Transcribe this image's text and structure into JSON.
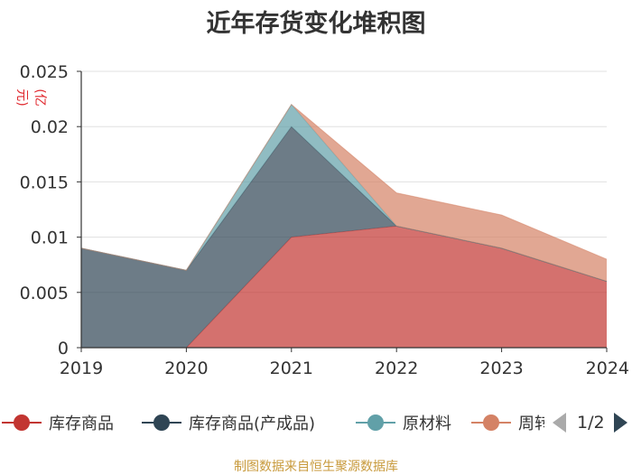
{
  "chart_data": {
    "type": "area",
    "stacked": true,
    "title": "近年存货变化堆积图",
    "unit": "(亿元)",
    "categories": [
      "2019",
      "2020",
      "2021",
      "2022",
      "2023",
      "2024"
    ],
    "yticks": [
      "0",
      "0.005",
      "0.01",
      "0.015",
      "0.02",
      "0.025"
    ],
    "ylim": [
      0,
      0.025
    ],
    "grid": true,
    "legend_position": "bottom",
    "series": [
      {
        "name": "库存商品",
        "color": "#c23531",
        "values": [
          0,
          0,
          0.01,
          0.011,
          0.009,
          0.006
        ]
      },
      {
        "name": "库存商品(产成品)",
        "color": "#2f4554",
        "values": [
          0.009,
          0.007,
          0.01,
          0,
          0,
          0
        ]
      },
      {
        "name": "原材料",
        "color": "#61a0a8",
        "values": [
          0,
          0,
          0.002,
          0,
          0,
          0
        ]
      },
      {
        "name": "周转材料",
        "color": "#d48265",
        "values": [
          0,
          0,
          0,
          0.003,
          0.003,
          0.002
        ]
      }
    ]
  },
  "legend": {
    "page": "1/2",
    "labels": [
      "库存商品",
      "库存商品(产成品)",
      "原材料",
      "周转材料"
    ]
  },
  "footer": "制图数据来自恒生聚源数据库"
}
